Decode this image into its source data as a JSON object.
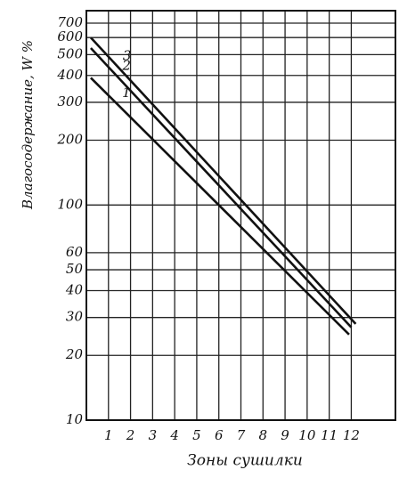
{
  "chart_data": {
    "type": "line",
    "xlabel": "Зоны сушилки",
    "ylabel": "Влагосодержание, W %",
    "log_y": true,
    "grid": true,
    "xlim": [
      0,
      14
    ],
    "ylim": [
      10,
      800
    ],
    "xticks": [
      1,
      2,
      3,
      4,
      5,
      6,
      7,
      8,
      9,
      10,
      11,
      12
    ],
    "yticks": [
      10,
      20,
      30,
      40,
      50,
      60,
      100,
      200,
      300,
      400,
      500,
      600,
      700
    ],
    "series": [
      {
        "name": "1",
        "color": "#111111",
        "x": [
          0.2,
          11.9
        ],
        "values": [
          390,
          25
        ]
      },
      {
        "name": "2",
        "color": "#111111",
        "x": [
          0.2,
          12
        ],
        "values": [
          536,
          27
        ]
      },
      {
        "name": "3",
        "color": "#111111",
        "x": [
          0.2,
          12.2
        ],
        "values": [
          600,
          28
        ]
      }
    ]
  }
}
